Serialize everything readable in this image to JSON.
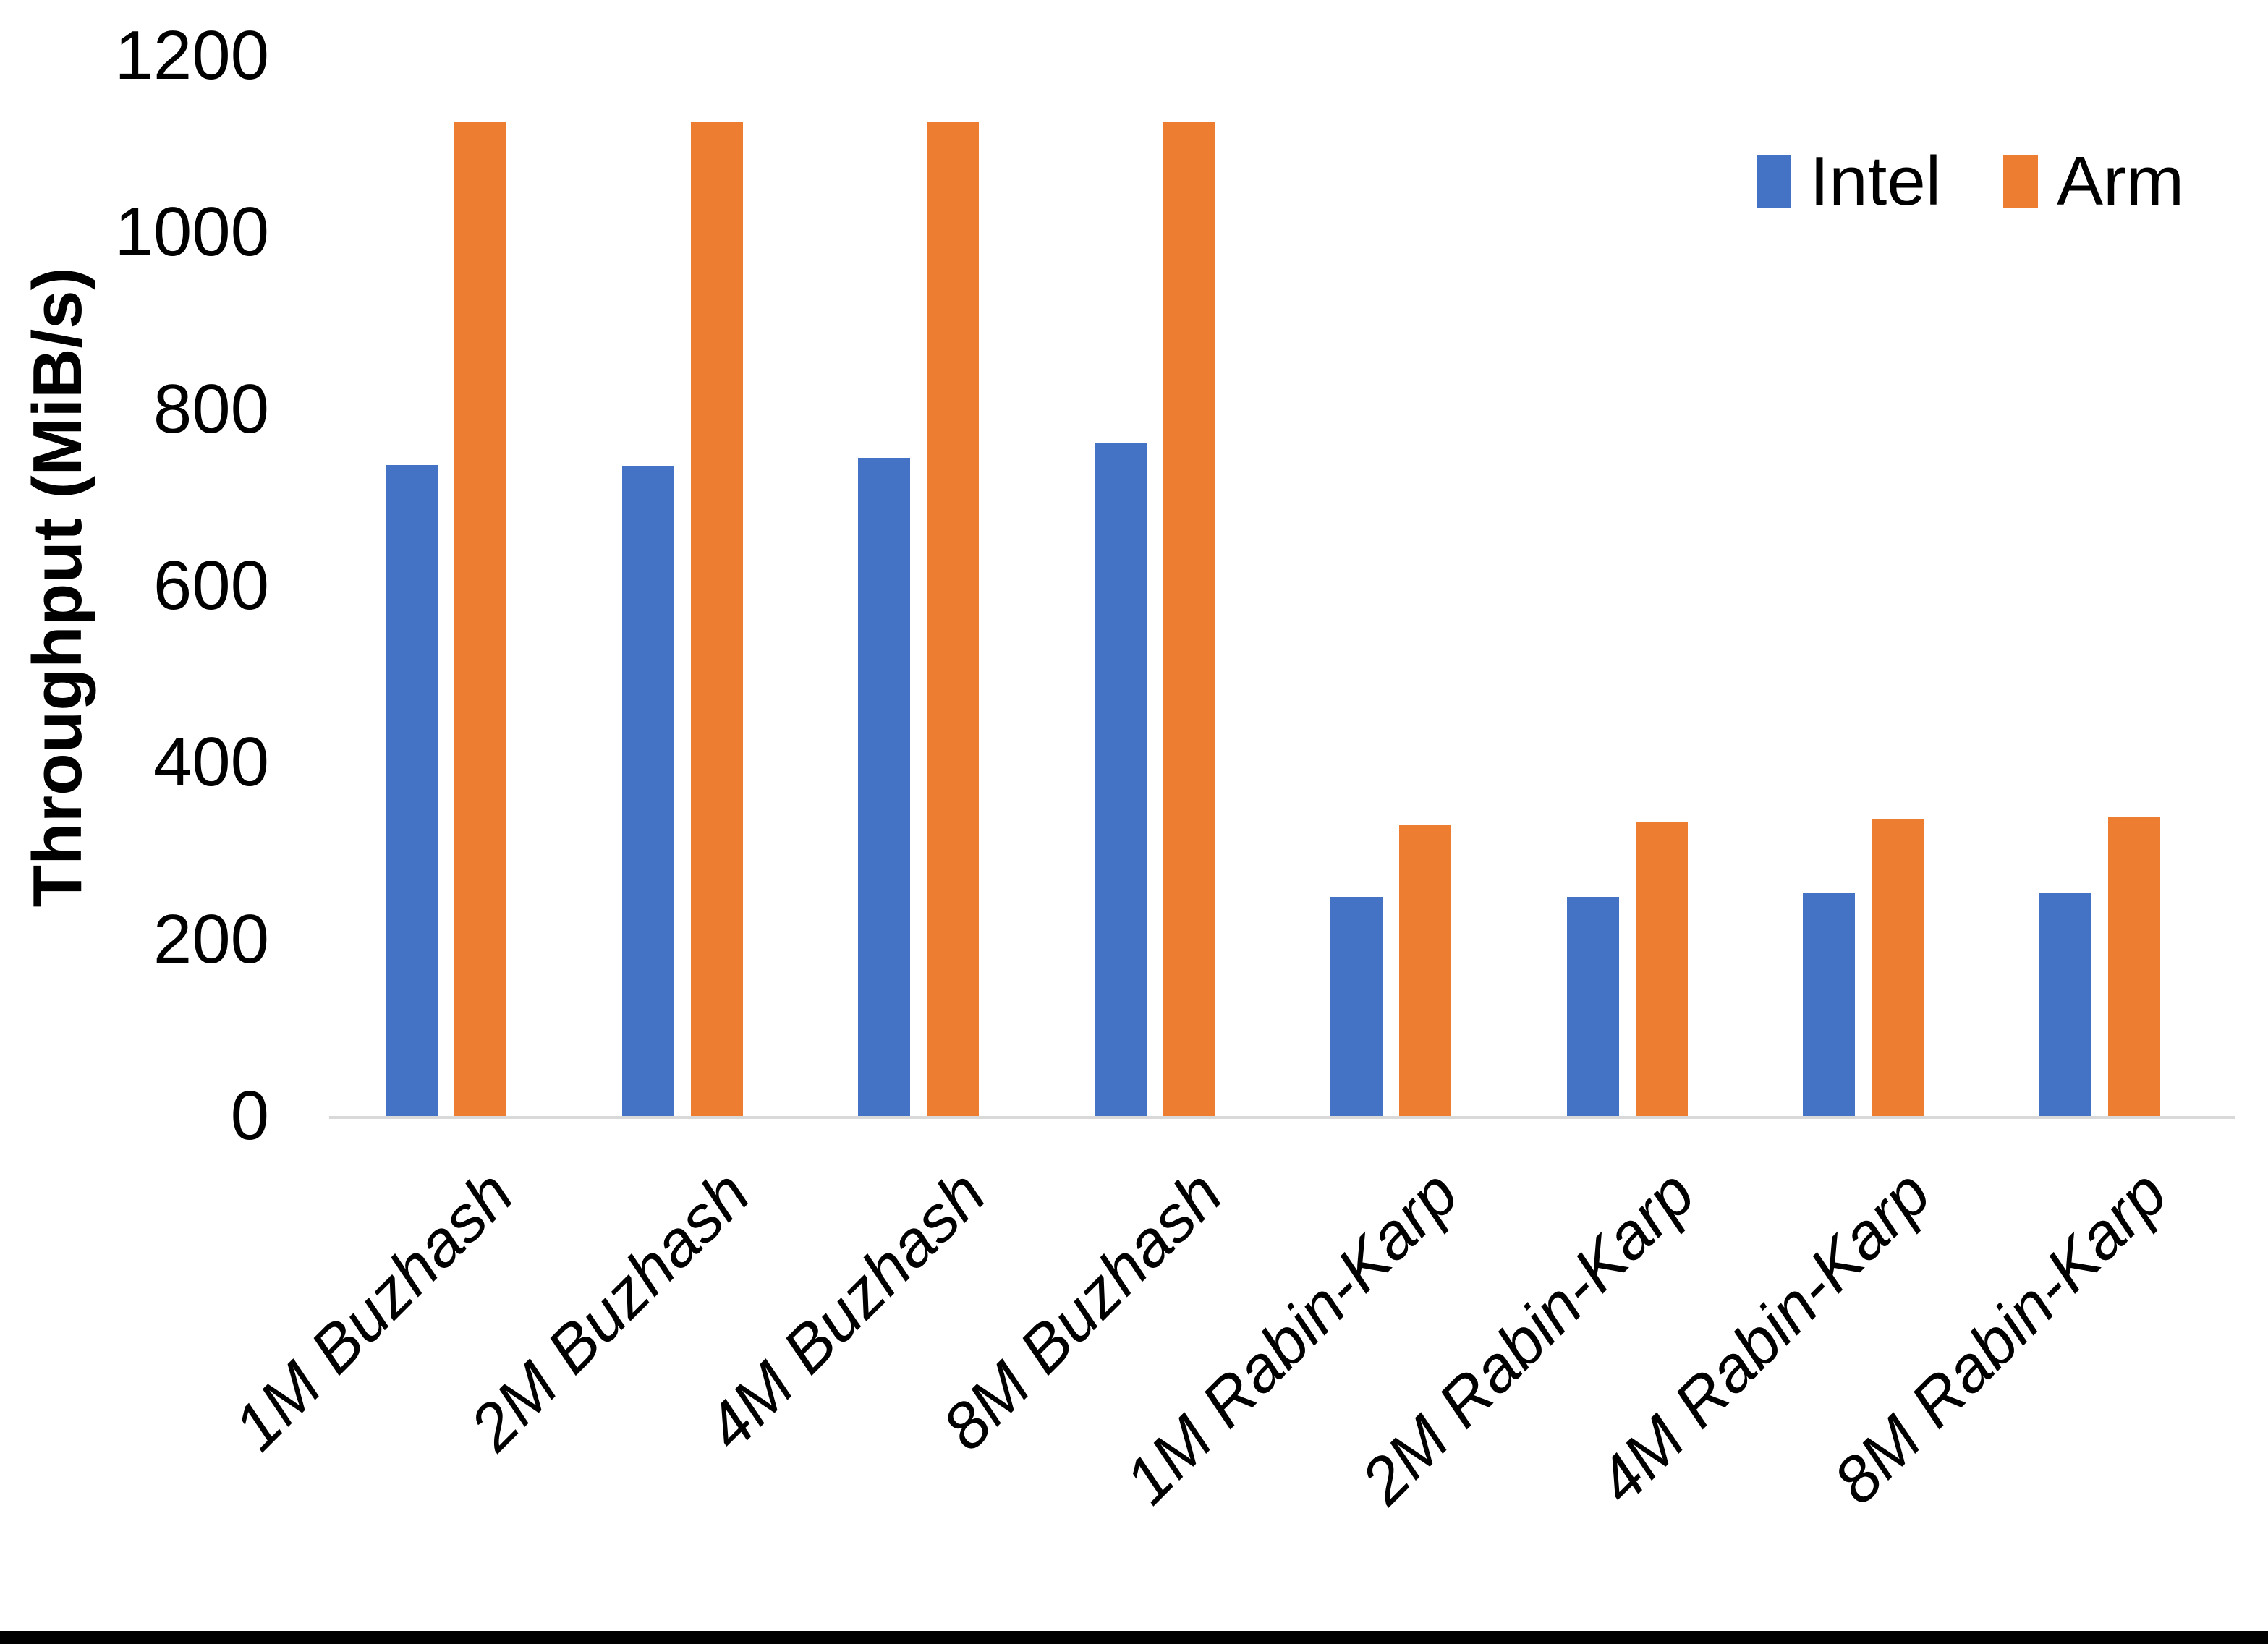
{
  "figure": {
    "background": "#FFFFFF",
    "bottom_bar_color": "#000000"
  },
  "chart_data": {
    "type": "bar",
    "title": "",
    "ylabel": "Throughput (MiB/s)",
    "xlabel": "",
    "ylim": [
      0,
      1200
    ],
    "yticks": [
      0,
      200,
      400,
      600,
      800,
      1000,
      1200
    ],
    "grid": false,
    "legend_position": "top-right",
    "axis_line_color": "#D9D9D9",
    "categories": [
      "1M Buzhash",
      "2M Buzhash",
      "4M Buzhash",
      "8M Buzhash",
      "1M Rabin-Karp",
      "2M Rabin-Karp",
      "4M Rabin-Karp",
      "8M Rabin-Karp"
    ],
    "series": [
      {
        "name": "Intel",
        "color": "#4472C4",
        "values": [
          737,
          736,
          745,
          762,
          248,
          248,
          252,
          252
        ]
      },
      {
        "name": "Arm",
        "color": "#ED7D31",
        "values": [
          1125,
          1125,
          1125,
          1125,
          330,
          332,
          336,
          338
        ]
      }
    ]
  }
}
